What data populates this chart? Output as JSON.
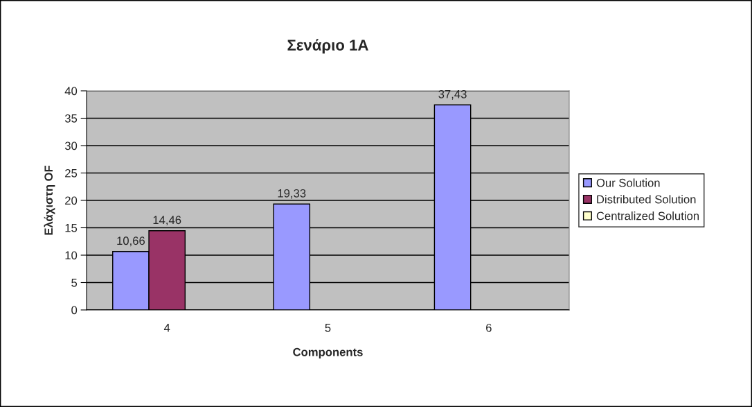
{
  "chart_data": {
    "type": "bar",
    "title": "Σενάριο 1A",
    "xlabel": "Components",
    "ylabel": "Ελάχιστη OF",
    "categories": [
      "4",
      "5",
      "6"
    ],
    "series": [
      {
        "name": "Our Solution",
        "color": "#9999ff",
        "values": [
          10.66,
          19.33,
          37.43
        ],
        "value_labels": [
          "10,66",
          "19,33",
          "37,43"
        ]
      },
      {
        "name": "Distributed Solution",
        "color": "#993366",
        "values": [
          14.46,
          null,
          null
        ],
        "value_labels": [
          "14,46",
          null,
          null
        ]
      },
      {
        "name": "Centralized Solution",
        "color": "#ffffcc",
        "values": [
          null,
          null,
          null
        ]
      }
    ],
    "ylim": [
      0,
      40
    ],
    "yticks": [
      0,
      5,
      10,
      15,
      20,
      25,
      30,
      35,
      40
    ],
    "grid": "y",
    "legend": "right"
  }
}
